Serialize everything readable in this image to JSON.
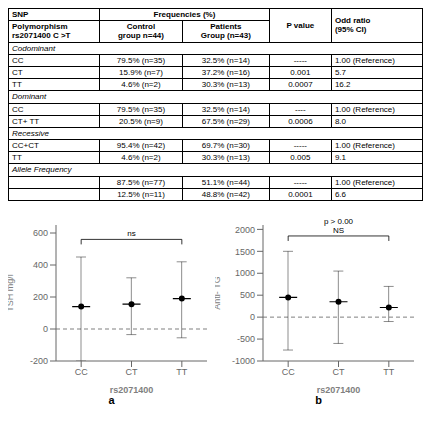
{
  "chart_data": [
    {
      "type": "table",
      "header": [
        "SNP",
        "Frequencies (%)",
        "P value",
        "Odd ratio\n(95% CI)"
      ],
      "subheader": [
        "Polymorphism\nrs2071400 C >T",
        "Control\ngroup n=44)",
        "Patients\nGroup (n=43)"
      ],
      "sections": [
        {
          "name": "Codominant",
          "rows": [
            [
              "CC",
              "79.5% (n=35)",
              "32.5% (n=14)",
              "-----",
              "1.00 (Reference)"
            ],
            [
              "CT",
              "15.9% (n=7)",
              "37.2% (n=16)",
              "0.001",
              "5.7"
            ],
            [
              "TT",
              "4.6% (n=2)",
              "30.3% (n=13)",
              "0.0007",
              "16.2"
            ]
          ]
        },
        {
          "name": "Dominant",
          "rows": [
            [
              "CC",
              "79.5% (n=35)",
              "32.5% (n=14)",
              "----",
              "1.00 (Reference)"
            ],
            [
              "CT+ TT",
              "20.5% (n=9)",
              "67.5% (n=29)",
              "0.0006",
              "8.0"
            ]
          ]
        },
        {
          "name": "Recessive",
          "rows": [
            [
              "CC+CT",
              "95.4% (n=42)",
              "69.7% (n=30)",
              "-----",
              "1.00 (Reference)"
            ],
            [
              "TT",
              "4.6% (n=2)",
              "30.3% (n=13)",
              "0.005",
              "9.1"
            ]
          ]
        },
        {
          "name": "Allele Frequency",
          "rows": [
            [
              null,
              "87.5% (n=77)",
              "51.1% (n=44)",
              "-----",
              "1.00 (Reference)"
            ],
            [
              null,
              "12.5% (n=11)",
              "48.8% (n=42)",
              "0.0001",
              "6.6"
            ]
          ]
        }
      ]
    },
    {
      "type": "dot",
      "title": "a",
      "xlabel": "rs2071400",
      "ylabel": "TSH mg/l",
      "categories": [
        "CC",
        "CT",
        "TT"
      ],
      "values": [
        140,
        155,
        190
      ],
      "ci_low": [
        -200,
        -35,
        -55
      ],
      "ci_high": [
        450,
        320,
        420
      ],
      "reference_line": 0,
      "bracket": {
        "y": 560,
        "text": "ns"
      },
      "ylim": [
        -200,
        650
      ],
      "yticks": [
        -200,
        0,
        200,
        400,
        600
      ],
      "color": "#000000"
    },
    {
      "type": "dot",
      "title": "b",
      "xlabel": "rs2071400",
      "ylabel": "Anti- TG",
      "categories": [
        "CC",
        "CT",
        "TT"
      ],
      "values": [
        450,
        350,
        220
      ],
      "ci_low": [
        -750,
        -600,
        -100
      ],
      "ci_high": [
        1500,
        1050,
        700
      ],
      "reference_line": 0,
      "bracket": {
        "y": 1850,
        "text": "p > 0.00\nNS"
      },
      "ylim": [
        -1000,
        2100
      ],
      "yticks": [
        -1000,
        -500,
        0,
        500,
        1000,
        1500,
        2000
      ],
      "color": "#000000"
    }
  ]
}
